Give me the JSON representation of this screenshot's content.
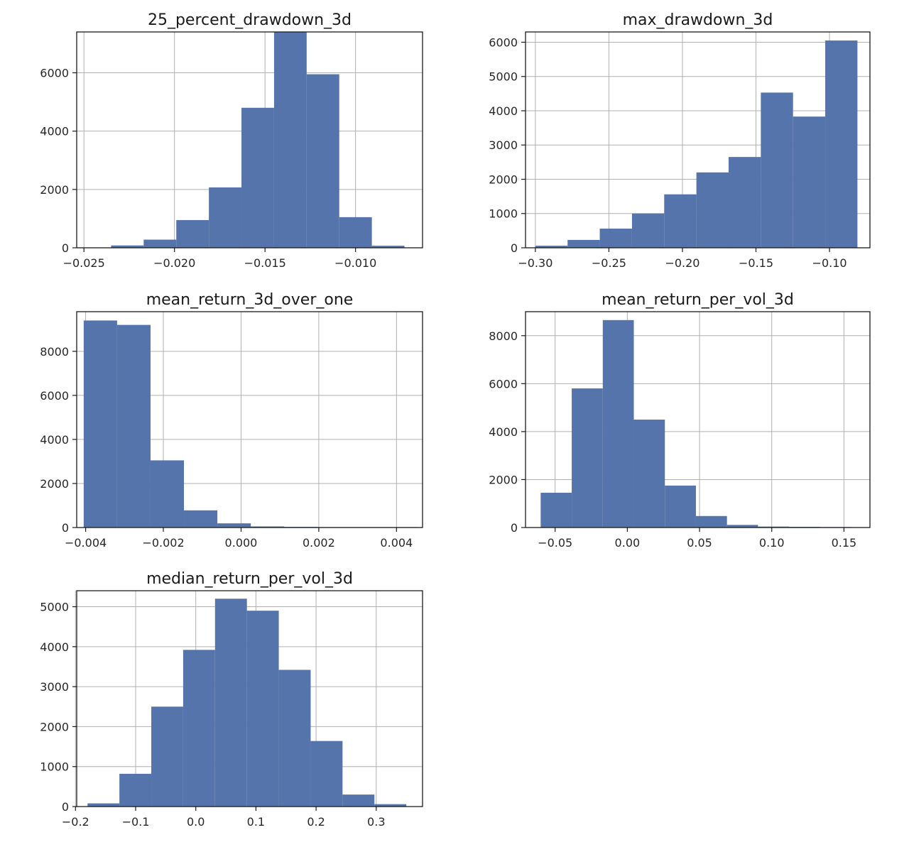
{
  "chart_data": [
    {
      "type": "histogram",
      "title": "25_percent_drawdown_3d",
      "x_ticks": [
        -0.025,
        -0.02,
        -0.015,
        -0.01
      ],
      "x_tick_labels": [
        "−0.025",
        "−0.020",
        "−0.015",
        "−0.010"
      ],
      "y_ticks": [
        0,
        2000,
        4000,
        6000
      ],
      "y_tick_labels": [
        "0",
        "2000",
        "4000",
        "6000"
      ],
      "xlim": [
        -0.0254,
        -0.0063
      ],
      "ylim": [
        0,
        7400
      ],
      "bin_edges": [
        -0.0235,
        -0.0217,
        -0.0199,
        -0.0181,
        -0.0163,
        -0.0145,
        -0.0127,
        -0.0109,
        -0.0091,
        -0.0073,
        -0.0055
      ],
      "counts": [
        80,
        280,
        950,
        2070,
        4800,
        7400,
        5950,
        1050,
        70,
        0
      ],
      "grid": true,
      "color": "#5574ab"
    },
    {
      "type": "histogram",
      "title": "max_drawdown_3d",
      "x_ticks": [
        -0.3,
        -0.25,
        -0.2,
        -0.15,
        -0.1
      ],
      "x_tick_labels": [
        "−0.30",
        "−0.25",
        "−0.20",
        "−0.15",
        "−0.10"
      ],
      "y_ticks": [
        0,
        1000,
        2000,
        3000,
        4000,
        5000,
        6000
      ],
      "y_tick_labels": [
        "0",
        "1000",
        "2000",
        "3000",
        "4000",
        "5000",
        "6000"
      ],
      "xlim": [
        -0.3067,
        -0.0725
      ],
      "ylim": [
        0,
        6300
      ],
      "bin_edges": [
        -0.3,
        -0.2781,
        -0.2562,
        -0.2343,
        -0.2124,
        -0.1905,
        -0.1686,
        -0.1467,
        -0.1248,
        -0.1029,
        -0.081
      ],
      "counts": [
        60,
        230,
        560,
        1000,
        1560,
        2200,
        2650,
        4530,
        3830,
        6050
      ],
      "grid": true,
      "color": "#5574ab"
    },
    {
      "type": "histogram",
      "title": "mean_return_3d_over_one",
      "x_ticks": [
        -0.004,
        -0.002,
        0.0,
        0.002,
        0.004
      ],
      "x_tick_labels": [
        "−0.004",
        "−0.002",
        "0.000",
        "0.002",
        "0.004"
      ],
      "y_ticks": [
        0,
        2000,
        4000,
        6000,
        8000
      ],
      "y_tick_labels": [
        "0",
        "2000",
        "4000",
        "6000",
        "8000"
      ],
      "xlim": [
        -0.00423,
        0.00467
      ],
      "ylim": [
        0,
        9800
      ],
      "bin_edges": [
        -0.00405,
        -0.00319,
        -0.00233,
        -0.00147,
        -0.00061,
        0.00025,
        0.00111,
        0.00197,
        0.00283,
        0.00369,
        0.00455
      ],
      "counts": [
        9400,
        9200,
        3050,
        780,
        190,
        50,
        30,
        20,
        20,
        20
      ],
      "grid": true,
      "color": "#5574ab"
    },
    {
      "type": "histogram",
      "title": "mean_return_per_vol_3d",
      "x_ticks": [
        -0.05,
        0.0,
        0.05,
        0.1,
        0.15
      ],
      "x_tick_labels": [
        "−0.05",
        "0.00",
        "0.05",
        "0.10",
        "0.15"
      ],
      "y_ticks": [
        0,
        2000,
        4000,
        6000,
        8000
      ],
      "y_tick_labels": [
        "0",
        "2000",
        "4000",
        "6000",
        "8000"
      ],
      "xlim": [
        -0.0705,
        0.168
      ],
      "ylim": [
        0,
        9000
      ],
      "bin_edges": [
        -0.06,
        -0.0385,
        -0.017,
        0.0045,
        0.026,
        0.0475,
        0.069,
        0.0905,
        0.112,
        0.1335,
        0.155
      ],
      "counts": [
        1450,
        5800,
        8650,
        4500,
        1750,
        480,
        110,
        40,
        30,
        20
      ],
      "grid": true,
      "color": "#5574ab"
    },
    {
      "type": "histogram",
      "title": "median_return_per_vol_3d",
      "x_ticks": [
        -0.2,
        -0.1,
        0.0,
        0.1,
        0.2,
        0.3
      ],
      "x_tick_labels": [
        "−0.2",
        "−0.1",
        "0.0",
        "0.1",
        "0.2",
        "0.3"
      ],
      "y_ticks": [
        0,
        1000,
        2000,
        3000,
        4000,
        5000
      ],
      "y_tick_labels": [
        "0",
        "1000",
        "2000",
        "3000",
        "4000",
        "5000"
      ],
      "xlim": [
        -0.198,
        0.377
      ],
      "ylim": [
        0,
        5400
      ],
      "bin_edges": [
        -0.18,
        -0.127,
        -0.074,
        -0.021,
        0.032,
        0.085,
        0.138,
        0.191,
        0.244,
        0.297,
        0.35
      ],
      "counts": [
        80,
        820,
        2500,
        3920,
        5200,
        4900,
        3420,
        1640,
        300,
        60
      ],
      "grid": true,
      "color": "#5574ab"
    }
  ]
}
